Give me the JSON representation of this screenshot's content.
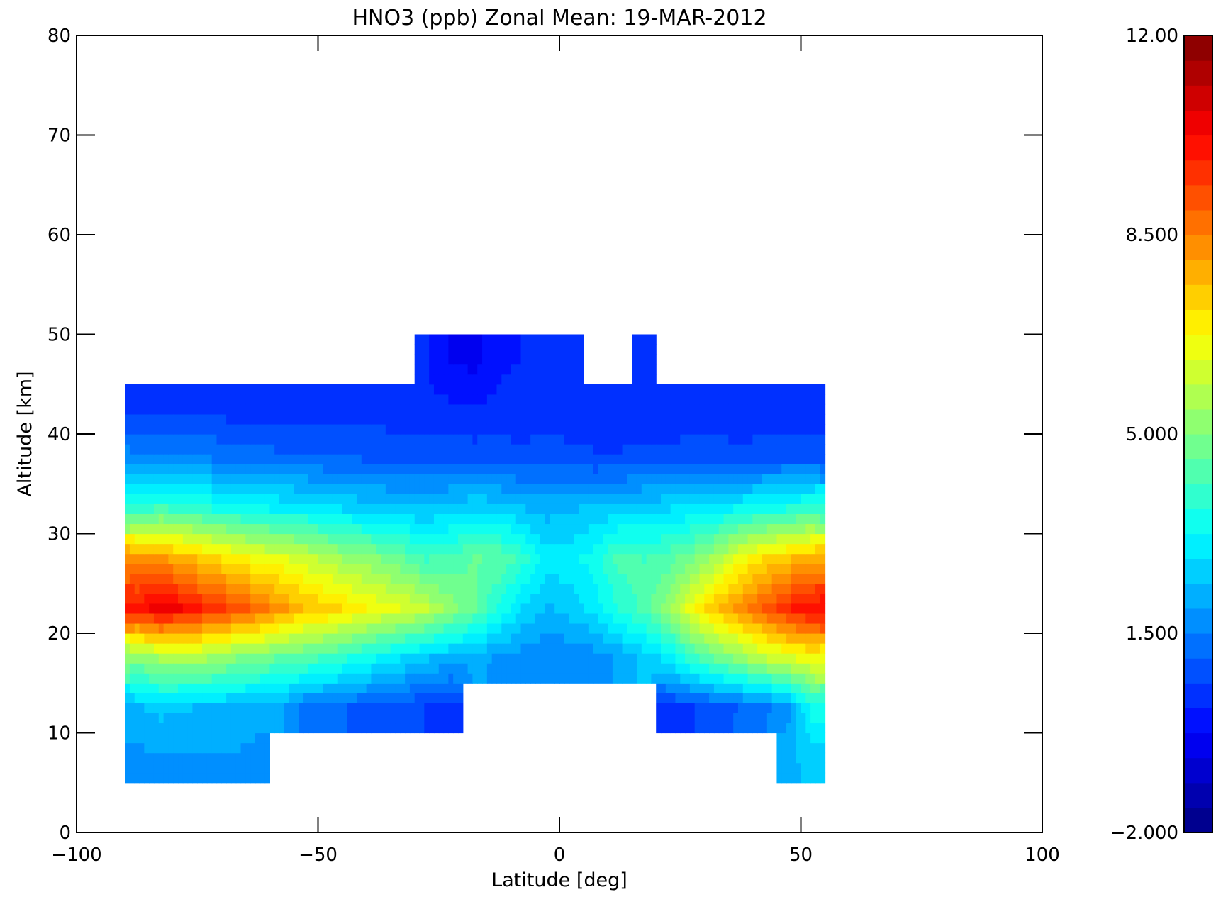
{
  "chart_data": {
    "type": "heatmap",
    "title": "HNO3 (ppb) Zonal Mean: 19-MAR-2012",
    "xlabel": "Latitude [deg]",
    "ylabel": "Altitude [km]",
    "xlim": [
      -100,
      100
    ],
    "ylim": [
      0,
      80
    ],
    "x_ticks": [
      -100,
      -50,
      0,
      50,
      100
    ],
    "x_tick_labels": [
      "−100",
      "−50",
      "0",
      "50",
      "100"
    ],
    "y_ticks": [
      0,
      10,
      20,
      30,
      40,
      50,
      60,
      70,
      80
    ],
    "y_tick_labels": [
      "0",
      "10",
      "20",
      "30",
      "40",
      "50",
      "60",
      "70",
      "80"
    ],
    "grid": false,
    "colorbar": {
      "min": -2.0,
      "max": 12.0,
      "levels": 32,
      "tick_values": [
        12.0,
        8.5,
        5.0,
        1.5,
        -2.0
      ],
      "tick_labels": [
        "12.00",
        "8.500",
        "5.000",
        "1.500",
        "−2.000"
      ],
      "colormap": "jet"
    },
    "latitudes": [
      -87.5,
      -82.5,
      -77.5,
      -72.5,
      -67.5,
      -62.5,
      -57.5,
      -52.5,
      -47.5,
      -42.5,
      -37.5,
      -32.5,
      -27.5,
      -22.5,
      -17.5,
      -12.5,
      -7.5,
      -2.5,
      2.5,
      7.5,
      12.5,
      17.5,
      22.5,
      27.5,
      32.5,
      37.5,
      42.5,
      47.5,
      52.5
    ],
    "altitudes": [
      7.5,
      12.5,
      17.5,
      22.5,
      27.5,
      32.5,
      37.5,
      42.5,
      47.5
    ],
    "values": [
      [
        1.8,
        1.9,
        1.9,
        1.9,
        1.9,
        1.8,
        null,
        null,
        null,
        null,
        null,
        null,
        null,
        null,
        null,
        null,
        null,
        null,
        null,
        null,
        null,
        null,
        null,
        null,
        null,
        null,
        null,
        2.3,
        2.5
      ],
      [
        2.3,
        2.5,
        2.4,
        2.3,
        2.2,
        2.1,
        2.0,
        1.3,
        1.2,
        1.0,
        0.9,
        0.8,
        0.6,
        0.4,
        null,
        null,
        null,
        null,
        null,
        null,
        null,
        null,
        0.5,
        0.6,
        0.9,
        1.1,
        1.4,
        1.8,
        3.5
      ],
      [
        5.0,
        5.5,
        5.6,
        5.4,
        5.0,
        4.8,
        4.5,
        4.3,
        4.0,
        3.6,
        3.2,
        2.8,
        2.4,
        2.2,
        2.0,
        1.9,
        1.7,
        1.5,
        1.6,
        1.7,
        2.0,
        2.5,
        3.0,
        4.0,
        4.6,
        5.2,
        5.8,
        6.2,
        6.6
      ],
      [
        10.0,
        10.5,
        10.2,
        9.6,
        9.3,
        8.8,
        8.2,
        7.6,
        7.4,
        6.9,
        6.6,
        6.3,
        5.9,
        5.2,
        4.6,
        3.6,
        2.8,
        2.3,
        2.6,
        3.0,
        3.8,
        4.3,
        5.2,
        6.6,
        7.6,
        8.3,
        9.0,
        9.8,
        10.2
      ],
      [
        8.4,
        8.2,
        7.8,
        7.4,
        7.0,
        6.6,
        6.4,
        6.1,
        5.6,
        5.3,
        5.0,
        4.6,
        4.1,
        4.3,
        4.6,
        4.5,
        3.9,
        3.0,
        3.1,
        3.5,
        4.3,
        4.1,
        4.4,
        4.9,
        5.6,
        6.6,
        7.2,
        7.6,
        8.0
      ],
      [
        3.9,
        4.2,
        4.0,
        3.7,
        3.5,
        3.3,
        3.2,
        3.1,
        2.9,
        2.7,
        2.6,
        2.5,
        2.4,
        2.6,
        2.8,
        2.7,
        2.4,
        2.2,
        2.3,
        2.5,
        2.6,
        2.7,
        2.8,
        2.9,
        3.1,
        3.3,
        3.5,
        3.7,
        3.9
      ],
      [
        1.7,
        1.6,
        1.6,
        1.5,
        1.4,
        1.3,
        1.2,
        1.2,
        1.1,
        1.1,
        1.0,
        1.0,
        1.0,
        1.0,
        0.9,
        0.9,
        0.8,
        0.9,
        0.8,
        0.7,
        0.7,
        0.8,
        0.8,
        0.9,
        0.9,
        0.8,
        0.9,
        1.0,
        1.0
      ],
      [
        0.5,
        0.4,
        0.4,
        0.5,
        0.4,
        0.4,
        0.4,
        0.4,
        0.4,
        0.4,
        0.4,
        0.3,
        0.3,
        0.3,
        0.2,
        0.3,
        0.3,
        0.4,
        0.3,
        0.3,
        0.3,
        0.3,
        0.3,
        0.3,
        0.3,
        0.3,
        0.3,
        0.3,
        0.3
      ],
      [
        null,
        null,
        null,
        null,
        null,
        null,
        null,
        null,
        null,
        null,
        null,
        null,
        0.2,
        -0.3,
        -0.4,
        0.1,
        0.2,
        0.3,
        0.3,
        null,
        null,
        0.3,
        null,
        null,
        null,
        null,
        null,
        null,
        null
      ]
    ]
  }
}
